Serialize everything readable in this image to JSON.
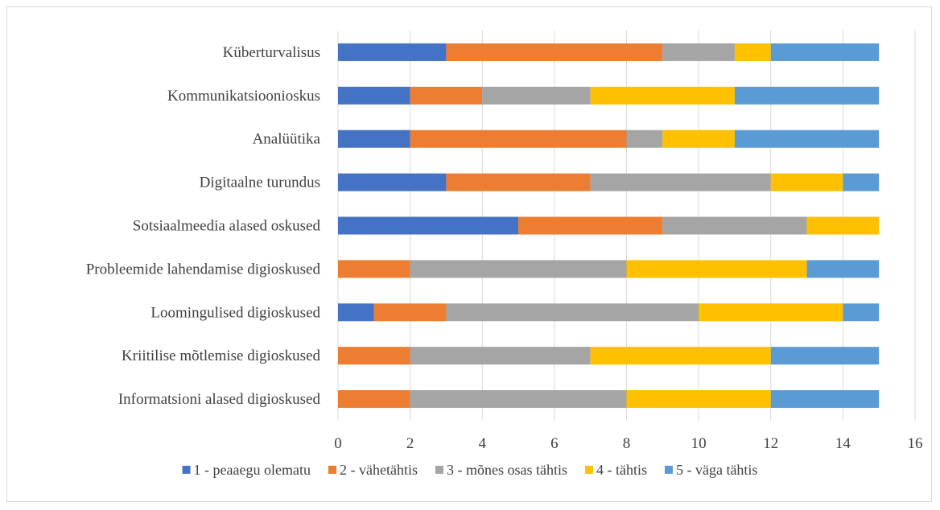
{
  "chart_data": {
    "type": "bar",
    "orientation": "horizontal",
    "stacked": true,
    "categories": [
      "Küberturvalisus",
      "Kommunikatsioonioskus",
      "Analüütika",
      "Digitaalne turundus",
      "Sotsiaalmeedia alased oskused",
      "Probleemide lahendamise digioskused",
      "Loomingulised digioskused",
      "Kriitilise mõtlemise digioskused",
      "Informatsioni alased digioskused"
    ],
    "series": [
      {
        "name": "1 - peaaegu olematu",
        "color": "#4472c4",
        "values": [
          3,
          2,
          2,
          3,
          5,
          0,
          1,
          0,
          0
        ]
      },
      {
        "name": "2 - vähetähtis",
        "color": "#ed7d31",
        "values": [
          6,
          2,
          6,
          4,
          4,
          2,
          2,
          2,
          2
        ]
      },
      {
        "name": "3 -  mõnes osas tähtis",
        "color": "#a5a5a5",
        "values": [
          2,
          3,
          1,
          5,
          4,
          6,
          7,
          5,
          6
        ]
      },
      {
        "name": "4 - tähtis",
        "color": "#ffc000",
        "values": [
          1,
          4,
          2,
          2,
          2,
          5,
          4,
          5,
          4
        ]
      },
      {
        "name": "5 - väga tähtis",
        "color": "#5b9bd5",
        "values": [
          3,
          4,
          4,
          1,
          0,
          2,
          1,
          3,
          3
        ]
      }
    ],
    "xlim": [
      0,
      16
    ],
    "xticks": [
      "0",
      "2",
      "4",
      "6",
      "8",
      "10",
      "12",
      "14",
      "16"
    ],
    "grid": true,
    "legend": "bottom",
    "title": "",
    "xlabel": "",
    "ylabel": ""
  }
}
